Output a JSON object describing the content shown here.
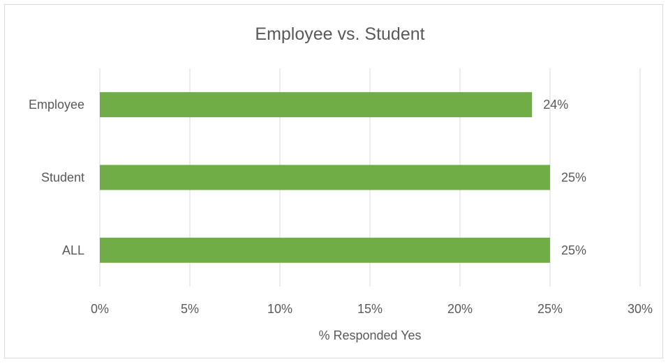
{
  "chart_data": {
    "type": "bar",
    "orientation": "horizontal",
    "title": "Employee vs. Student",
    "xlabel": "% Responded Yes",
    "ylabel": "",
    "categories": [
      "Employee",
      "Student",
      "ALL"
    ],
    "values": [
      24,
      25,
      25
    ],
    "data_labels": [
      "24%",
      "25%",
      "25%"
    ],
    "xlim": [
      0,
      30
    ],
    "x_ticks": [
      "0%",
      "5%",
      "10%",
      "15%",
      "20%",
      "25%",
      "30%"
    ],
    "grid": true,
    "legend": "none",
    "bar_color": "#70ad47",
    "grid_color": "#d9d9d9",
    "text_color": "#595959"
  }
}
